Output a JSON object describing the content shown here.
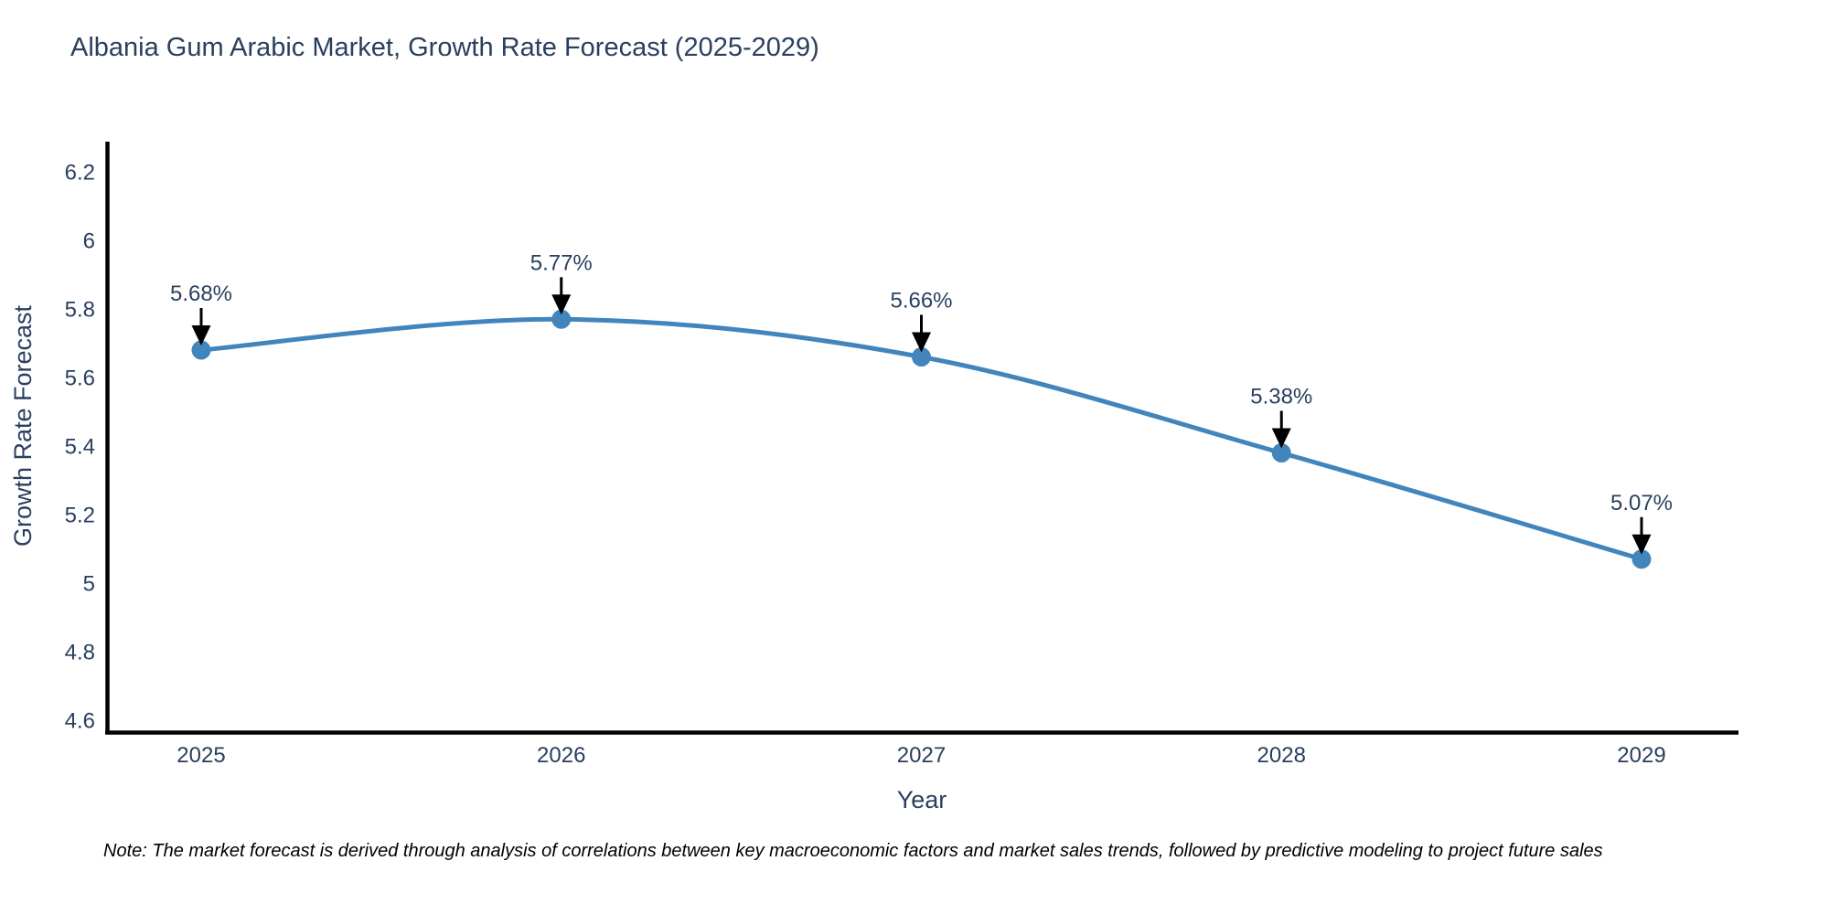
{
  "chart": {
    "title": "Albania Gum Arabic Market, Growth Rate Forecast (2025-2029)",
    "xlabel": "Year",
    "ylabel": "Growth Rate Forecast",
    "note": "Note: The market forecast is derived through analysis of correlations between key macroeconomic factors and market sales trends, followed by predictive modeling to project future sales"
  },
  "chart_data": {
    "type": "line",
    "title": "Albania Gum Arabic Market, Growth Rate Forecast (2025-2029)",
    "xlabel": "Year",
    "ylabel": "Growth Rate Forecast",
    "x": [
      2025,
      2026,
      2027,
      2028,
      2029
    ],
    "x_tick_labels": [
      "2025",
      "2026",
      "2027",
      "2028",
      "2029"
    ],
    "series": [
      {
        "name": "Growth Rate Forecast",
        "values": [
          5.68,
          5.77,
          5.66,
          5.38,
          5.07
        ],
        "point_labels": [
          "5.68%",
          "5.77%",
          "5.66%",
          "5.38%",
          "5.07%"
        ]
      }
    ],
    "ylim": [
      4.6,
      6.2
    ],
    "yticks": [
      4.6,
      4.8,
      5.0,
      5.2,
      5.4,
      5.6,
      5.8,
      6.0,
      6.2
    ],
    "ytick_labels": [
      "4.6",
      "4.8",
      "5",
      "5.2",
      "5.4",
      "5.6",
      "5.8",
      "6",
      "6.2"
    ],
    "grid": false,
    "legend_position": "none",
    "line_shape": "spline",
    "colors": {
      "line": "#4285bd",
      "marker": "#4285bd",
      "axis_line": "#000000",
      "tick_label": "#2a3f5f",
      "annotation_text": "#2a3f5f",
      "annotation_arrow": "#000000",
      "background": "#ffffff"
    }
  }
}
